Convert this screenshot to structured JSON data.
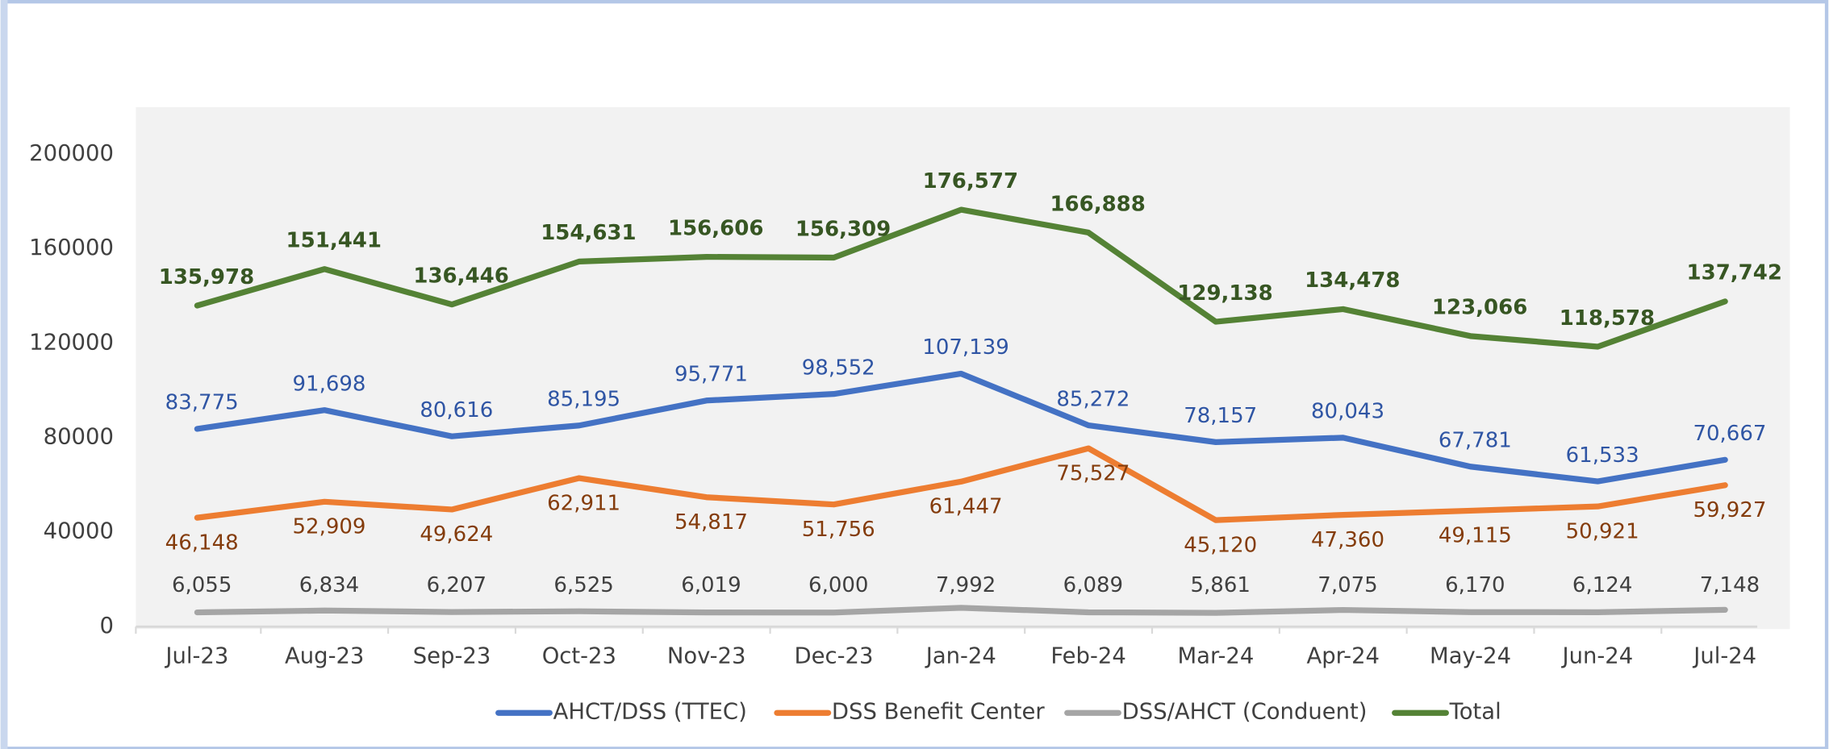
{
  "chart_data": {
    "type": "line",
    "categories": [
      "Jul-23",
      "Aug-23",
      "Sep-23",
      "Oct-23",
      "Nov-23",
      "Dec-23",
      "Jan-24",
      "Feb-24",
      "Mar-24",
      "Apr-24",
      "May-24",
      "Jun-24",
      "Jul-24"
    ],
    "ylim": [
      0,
      220000
    ],
    "yticks": [
      0,
      40000,
      80000,
      120000,
      160000,
      200000
    ],
    "legend": "bottom",
    "series": [
      {
        "name": "AHCT/DSS (TTEC)",
        "color": "#4472c4",
        "label_color": "#2f55a4",
        "values": [
          83775,
          91698,
          80616,
          85195,
          95771,
          98552,
          107139,
          85272,
          78157,
          80043,
          67781,
          61533,
          70667
        ],
        "value_labels": [
          "83,775",
          "91,698",
          "80,616",
          "85,195",
          "95,771",
          "98,552",
          "107,139",
          "85,272",
          "78,157",
          "80,043",
          "67,781",
          "61,533",
          "70,667"
        ]
      },
      {
        "name": "DSS Benefit Center",
        "color": "#ed7d31",
        "label_color": "#843c0c",
        "values": [
          46148,
          52909,
          49624,
          62911,
          54817,
          51756,
          61447,
          75527,
          45120,
          47360,
          49115,
          50921,
          59927
        ],
        "value_labels": [
          "46,148",
          "52,909",
          "49,624",
          "62,911",
          "54,817",
          "51,756",
          "61,447",
          "75,527",
          "45,120",
          "47,360",
          "49,115",
          "50,921",
          "59,927"
        ]
      },
      {
        "name": "DSS/AHCT (Conduent)",
        "color": "#a5a5a5",
        "label_color": "#404040",
        "values": [
          6055,
          6834,
          6207,
          6525,
          6019,
          6000,
          7992,
          6089,
          5861,
          7075,
          6170,
          6124,
          7148
        ],
        "value_labels": [
          "6,055",
          "6,834",
          "6,207",
          "6,525",
          "6,019",
          "6,000",
          "7,992",
          "6,089",
          "5,861",
          "7,075",
          "6,170",
          "6,124",
          "7,148"
        ]
      },
      {
        "name": "Total",
        "color": "#548235",
        "label_color": "#375623",
        "values": [
          135978,
          151441,
          136446,
          154631,
          156606,
          156309,
          176577,
          166888,
          129138,
          134478,
          123066,
          118578,
          137742
        ],
        "value_labels": [
          "135,978",
          "151,441",
          "136,446",
          "154,631",
          "156,606",
          "156,309",
          "176,577",
          "166,888",
          "129,138",
          "134,478",
          "123,066",
          "118,578",
          "137,742"
        ]
      }
    ]
  }
}
